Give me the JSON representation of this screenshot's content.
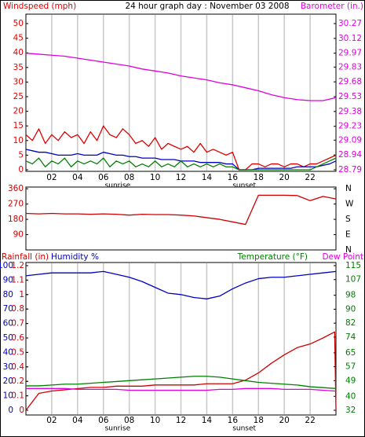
{
  "title": "24 hour graph day : November 03 2008",
  "chart_data": [
    {
      "type": "line",
      "ylabel": "Windspeed (mph)",
      "xlim": [
        0,
        24
      ],
      "xticks": [
        {
          "value": 2,
          "label": "02"
        },
        {
          "value": 4,
          "label": "04"
        },
        {
          "value": 6,
          "label": "06"
        },
        {
          "value": 8,
          "label": "08"
        },
        10,
        12,
        14,
        16,
        18,
        20,
        22
      ],
      "grid": true,
      "ylim": [
        0,
        50
      ],
      "yticks": [
        0,
        5,
        10,
        15,
        20,
        25,
        30,
        35,
        40,
        45,
        50
      ],
      "y2lim": [
        28.79,
        30.27
      ],
      "y2ticks": [
        30.27,
        30.12,
        29.97,
        29.83,
        29.68,
        29.53,
        29.38,
        29.23,
        29.09,
        28.94,
        28.79
      ],
      "x": [
        0,
        0.5,
        1,
        1.5,
        2,
        2.5,
        3,
        3.5,
        4,
        4.5,
        5,
        5.5,
        6,
        6.5,
        7,
        7.5,
        8,
        8.5,
        9,
        9.5,
        10,
        10.5,
        11,
        11.5,
        12,
        12.5,
        13,
        13.5,
        14,
        14.5,
        15,
        15.5,
        16,
        16.5,
        17,
        17.5,
        18,
        18.5,
        19,
        19.5,
        20,
        20.5,
        21,
        21.5,
        22,
        22.5,
        23,
        23.5,
        24
      ],
      "series": [
        {
          "color": "#e00000",
          "values": [
            12,
            10,
            14,
            9,
            12,
            10,
            13,
            11,
            12,
            9,
            13,
            10,
            15,
            12,
            11,
            14,
            12,
            9,
            10,
            8,
            11,
            7,
            9,
            8,
            7,
            8,
            6,
            9,
            6,
            7,
            6,
            5,
            6,
            0,
            0,
            2,
            2,
            1,
            2,
            2,
            1,
            2,
            2,
            1,
            2,
            2,
            3,
            4,
            5
          ]
        },
        {
          "color": "#0000c0",
          "values": [
            7,
            6.5,
            6,
            6,
            5.5,
            5,
            5,
            5,
            5.5,
            5,
            5,
            5,
            6,
            5.5,
            5,
            5,
            4.5,
            4.5,
            4,
            4,
            4,
            3.5,
            3.5,
            3.5,
            3,
            3,
            3,
            2.5,
            2.5,
            2.5,
            2.5,
            2,
            2,
            0,
            0,
            0,
            0.5,
            0.5,
            0.5,
            0.5,
            0.5,
            0.5,
            1,
            1,
            1,
            1,
            1.5,
            2,
            3
          ]
        },
        {
          "color": "#008000",
          "values": [
            3,
            2,
            4,
            1,
            3,
            2,
            4,
            1,
            3,
            2,
            3,
            2,
            4,
            1,
            3,
            2,
            3,
            1,
            2,
            1,
            3,
            1,
            2,
            1,
            3,
            1,
            2,
            1,
            2,
            1,
            2,
            1,
            1,
            0,
            0,
            0,
            0,
            0,
            0,
            0,
            0,
            0,
            0,
            0,
            0,
            1,
            2,
            3,
            4
          ]
        },
        {
          "name": "Barometer (in.)",
          "color": "#e000e0",
          "axis": "y2",
          "x": [
            0,
            1,
            2,
            3,
            4,
            5,
            6,
            7,
            8,
            9,
            10,
            11,
            12,
            13,
            14,
            15,
            16,
            17,
            18,
            19,
            20,
            21,
            22,
            23,
            24
          ],
          "values": [
            29.97,
            29.96,
            29.95,
            29.94,
            29.92,
            29.9,
            29.88,
            29.86,
            29.84,
            29.81,
            29.79,
            29.77,
            29.74,
            29.72,
            29.7,
            29.67,
            29.65,
            29.62,
            29.59,
            29.55,
            29.52,
            29.5,
            29.49,
            29.49,
            29.52
          ]
        }
      ],
      "annotations": [
        {
          "text": "sunrise",
          "x": 7.1
        },
        {
          "text": "sunset",
          "x": 16.9
        }
      ]
    },
    {
      "type": "line",
      "xlim": [
        0,
        24
      ],
      "ylim": [
        0,
        370
      ],
      "yticks": [
        90,
        180,
        270,
        360
      ],
      "y2lim": [
        0,
        370
      ],
      "y2ticks": [
        {
          "value": 360,
          "label": "N"
        },
        {
          "value": 270,
          "label": "W"
        },
        {
          "value": 180,
          "label": "S"
        },
        {
          "value": 90,
          "label": "E"
        },
        {
          "value": 0,
          "label": "N"
        }
      ],
      "x": [
        0,
        1,
        2,
        3,
        4,
        5,
        6,
        7,
        8,
        9,
        10,
        11,
        12,
        13,
        14,
        15,
        16,
        17,
        18,
        19,
        20,
        21,
        22,
        23,
        24
      ],
      "series": [
        {
          "color": "#d00000",
          "values": [
            215,
            212,
            215,
            212,
            212,
            210,
            212,
            210,
            205,
            210,
            208,
            208,
            205,
            200,
            190,
            180,
            165,
            150,
            322,
            322,
            322,
            320,
            290,
            315,
            300
          ]
        }
      ]
    },
    {
      "type": "line",
      "xlim": [
        0,
        24
      ],
      "xticks": [
        {
          "value": 2,
          "label": "02"
        },
        {
          "value": 4,
          "label": "04"
        },
        {
          "value": 6,
          "label": "06"
        },
        {
          "value": 8,
          "label": "08"
        },
        10,
        12,
        14,
        16,
        18,
        20,
        22
      ],
      "grid": true,
      "ylim": [
        0,
        100
      ],
      "yticks": [
        100,
        90,
        80,
        70,
        60,
        50,
        40,
        30,
        20,
        10,
        0
      ],
      "y3lim": [
        0,
        1.2
      ],
      "y3ticks": [
        1.2,
        {
          "value": 1.08,
          "label": "1.1"
        },
        {
          "value": 0.96,
          "label": "1"
        },
        {
          "value": 0.84,
          "label": "0.8"
        },
        {
          "value": 0.72,
          "label": "0.7"
        },
        0.6,
        {
          "value": 0.48,
          "label": "0.5"
        },
        {
          "value": 0.36,
          "label": "0.4"
        },
        {
          "value": 0.24,
          "label": "0.2"
        },
        {
          "value": 0.12,
          "label": "0.1"
        },
        0
      ],
      "y2lim": [
        32,
        115
      ],
      "y2ticks": [
        115,
        107,
        98,
        90,
        82,
        74,
        65,
        57,
        49,
        40,
        32
      ],
      "x": [
        0,
        1,
        2,
        3,
        4,
        5,
        6,
        7,
        8,
        9,
        10,
        11,
        12,
        13,
        14,
        15,
        16,
        17,
        18,
        19,
        20,
        21,
        22,
        23,
        24
      ],
      "series": [
        {
          "name": "Humidity %",
          "color": "#0000c0",
          "values": [
            93,
            94,
            95,
            95,
            95,
            95,
            96,
            94,
            92,
            89,
            85,
            81,
            80,
            78,
            77,
            79,
            84,
            88,
            91,
            92,
            92,
            93,
            94,
            95,
            96
          ]
        },
        {
          "name": "Rainfall (in)",
          "color": "#d00000",
          "axis": "y3",
          "x": [
            0,
            1,
            2,
            3,
            4,
            5,
            6,
            7,
            8,
            9,
            10,
            11,
            12,
            13,
            14,
            15,
            16,
            17,
            18,
            19,
            20,
            21,
            22,
            23,
            23.9,
            24
          ],
          "values": [
            0,
            0.14,
            0.16,
            0.17,
            0.18,
            0.19,
            0.19,
            0.2,
            0.2,
            0.2,
            0.21,
            0.21,
            0.21,
            0.21,
            0.22,
            0.22,
            0.22,
            0.25,
            0.31,
            0.39,
            0.46,
            0.52,
            0.55,
            0.6,
            0.65,
            0
          ]
        },
        {
          "name": "Temperature (°F)",
          "color": "#008000",
          "axis": "y2",
          "values": [
            46,
            46,
            46.5,
            47,
            47,
            47.5,
            48,
            48.5,
            49,
            49.5,
            50,
            50.5,
            51,
            51.5,
            51.5,
            51,
            50,
            49,
            48,
            47.5,
            47,
            46.5,
            45.5,
            45,
            44.5
          ]
        },
        {
          "name": "Dew Point",
          "color": "#e000e0",
          "axis": "y2",
          "values": [
            44.5,
            44.5,
            44.5,
            44.5,
            44,
            44,
            44,
            44,
            43.5,
            43.5,
            43.5,
            43.5,
            43.5,
            43.5,
            43.5,
            44,
            44,
            44.5,
            44.5,
            44.5,
            44,
            44,
            44,
            43.5,
            43
          ]
        }
      ],
      "annotations": [
        {
          "text": "sunrise",
          "x": 7.1
        },
        {
          "text": "sunset",
          "x": 16.9
        }
      ]
    }
  ]
}
